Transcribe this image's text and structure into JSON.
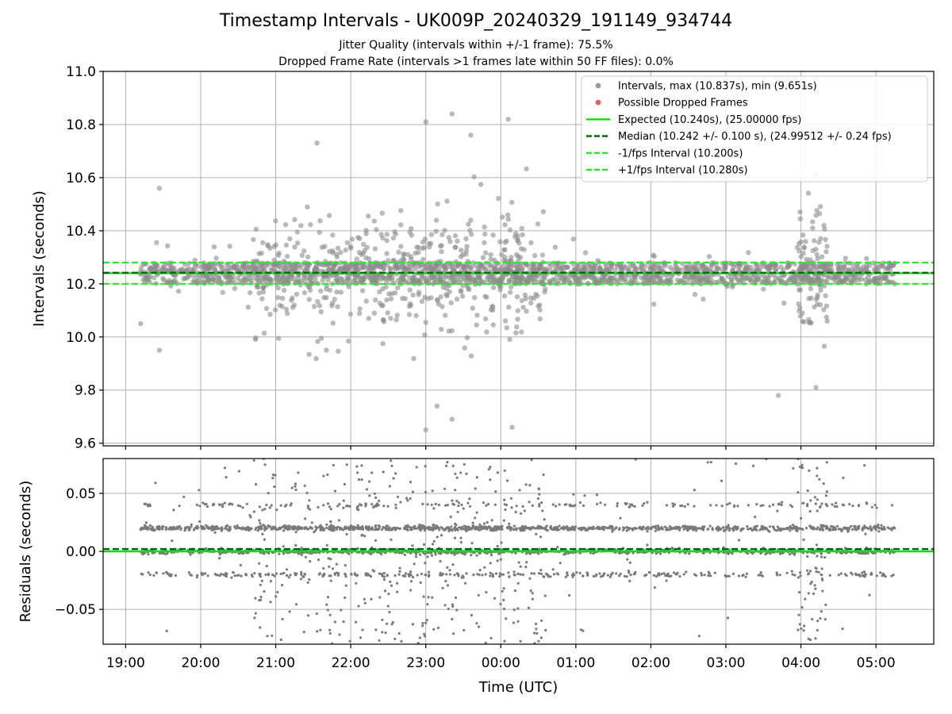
{
  "chart_data": [
    {
      "type": "scatter",
      "title": "Timestamp Intervals - UK009P_20240329_191149_934744",
      "subtitle_lines": [
        "Jitter Quality (intervals within +/-1 frame): 75.5%",
        "Dropped Frame Rate (intervals >1 frames late within 50 FF files): 0.0%"
      ],
      "xlabel": "",
      "ylabel": "Intervals (seconds)",
      "x_range_hours": [
        18.7,
        29.77
      ],
      "x_ticks": [
        {
          "value": 19,
          "label": "19:00"
        },
        {
          "value": 20,
          "label": "20:00"
        },
        {
          "value": 21,
          "label": "21:00"
        },
        {
          "value": 22,
          "label": "22:00"
        },
        {
          "value": 23,
          "label": "23:00"
        },
        {
          "value": 24,
          "label": "00:00"
        },
        {
          "value": 25,
          "label": "01:00"
        },
        {
          "value": 26,
          "label": "02:00"
        },
        {
          "value": 27,
          "label": "03:00"
        },
        {
          "value": 28,
          "label": "04:00"
        },
        {
          "value": 29,
          "label": "05:00"
        }
      ],
      "ylim": [
        9.59,
        11.0
      ],
      "y_ticks": [
        9.6,
        9.8,
        10.0,
        10.2,
        10.4,
        10.6,
        10.8,
        11.0
      ],
      "y_tick_labels": [
        "9.6",
        "9.8",
        "10.0",
        "10.2",
        "10.4",
        "10.6",
        "10.8",
        "11.0"
      ],
      "grid": true,
      "legend_position": "top-right",
      "legend": [
        {
          "label": "Intervals, max (10.837s), min (9.651s)",
          "kind": "dot",
          "color": "#999999"
        },
        {
          "label": "Possible Dropped Frames",
          "kind": "dot",
          "color": "#f25c5c"
        },
        {
          "label": "Expected (10.240s), (25.00000 fps)",
          "kind": "solid",
          "color": "#00e000"
        },
        {
          "label": "Median (10.242 +/- 0.100 s), (24.99512 +/- 0.24 fps)",
          "kind": "dashed",
          "color": "#006400"
        },
        {
          "label": "-1/fps Interval (10.200s)",
          "kind": "dashed",
          "color": "#22ee22"
        },
        {
          "label": "+1/fps Interval (10.280s)",
          "kind": "dashed",
          "color": "#22ee22"
        }
      ],
      "reference_lines": [
        {
          "name": "expected",
          "y": 10.24,
          "style": "solid",
          "color": "#00e000"
        },
        {
          "name": "median",
          "y": 10.242,
          "style": "dashed",
          "color": "#006400"
        },
        {
          "name": "minus_one_frame",
          "y": 10.2,
          "style": "dashed",
          "color": "#22ee22"
        },
        {
          "name": "plus_one_frame",
          "y": 10.28,
          "style": "dashed",
          "color": "#22ee22"
        }
      ],
      "series": [
        {
          "name": "Intervals",
          "x_range_hours": [
            19.2,
            29.25
          ],
          "y_max": 10.837,
          "y_min": 9.651,
          "core_band_y": [
            10.2,
            10.28
          ],
          "notable_points": [
            {
              "x": 23.0,
              "y": 10.81
            },
            {
              "x": 23.35,
              "y": 10.84
            },
            {
              "x": 23.6,
              "y": 10.76
            },
            {
              "x": 24.1,
              "y": 10.82
            },
            {
              "x": 21.55,
              "y": 10.73
            },
            {
              "x": 28.2,
              "y": 10.61
            },
            {
              "x": 23.0,
              "y": 9.65
            },
            {
              "x": 23.15,
              "y": 9.74
            },
            {
              "x": 23.35,
              "y": 9.69
            },
            {
              "x": 24.15,
              "y": 9.66
            },
            {
              "x": 27.7,
              "y": 9.78
            },
            {
              "x": 28.2,
              "y": 9.81
            },
            {
              "x": 19.2,
              "y": 10.05
            },
            {
              "x": 19.45,
              "y": 10.56
            },
            {
              "x": 19.45,
              "y": 9.95
            }
          ],
          "dense_scatter_ranges_hours": [
            [
              20.7,
              24.6
            ],
            [
              27.95,
              28.35
            ]
          ]
        }
      ]
    },
    {
      "type": "scatter",
      "xlabel": "Time (UTC)",
      "ylabel": "Residuals (seconds)",
      "x_range_hours": [
        18.7,
        29.77
      ],
      "ylim": [
        -0.08,
        0.08
      ],
      "y_ticks": [
        -0.05,
        0.0,
        0.05
      ],
      "y_tick_labels": [
        "−0.05",
        "0.00",
        "0.05"
      ],
      "grid": true,
      "reference_lines": [
        {
          "name": "zero",
          "y": 0.0,
          "style": "solid",
          "color": "#00e000"
        },
        {
          "name": "median_residual",
          "y": 0.002,
          "style": "dashed",
          "color": "#006400"
        }
      ],
      "series": [
        {
          "name": "Residuals",
          "band_levels": [
            -0.02,
            0.0,
            0.02,
            0.04
          ],
          "x_range_hours": [
            19.2,
            29.25
          ]
        }
      ]
    }
  ]
}
